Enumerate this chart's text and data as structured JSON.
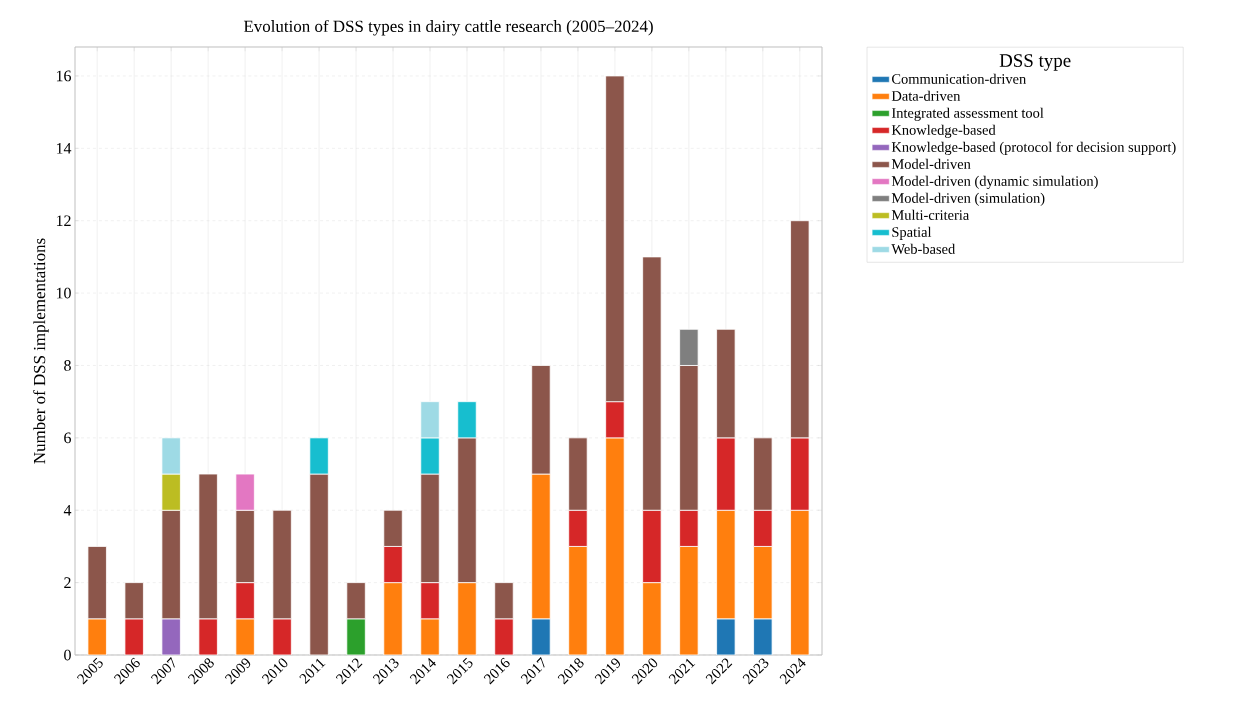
{
  "chart_data": {
    "type": "bar",
    "stacked": true,
    "title": "Evolution of DSS types in dairy cattle research (2005–2024)",
    "ylabel": "Number of DSS implementations",
    "legend_title": "DSS type",
    "categories": [
      "2005",
      "2006",
      "2007",
      "2008",
      "2009",
      "2010",
      "2011",
      "2012",
      "2013",
      "2014",
      "2015",
      "2016",
      "2017",
      "2018",
      "2019",
      "2020",
      "2021",
      "2022",
      "2023",
      "2024"
    ],
    "series": [
      {
        "name": "Communication-driven",
        "color": "#1f77b4",
        "values": [
          null,
          null,
          null,
          null,
          null,
          null,
          null,
          null,
          null,
          null,
          null,
          null,
          1,
          null,
          null,
          null,
          null,
          1,
          1,
          null
        ]
      },
      {
        "name": "Data-driven",
        "color": "#ff7f0e",
        "values": [
          1,
          null,
          null,
          null,
          1,
          null,
          null,
          null,
          2,
          1,
          2,
          null,
          4,
          3,
          6,
          2,
          3,
          3,
          2,
          4
        ]
      },
      {
        "name": "Integrated assessment tool",
        "color": "#2ca02c",
        "values": [
          null,
          null,
          null,
          null,
          null,
          null,
          null,
          1,
          null,
          null,
          null,
          null,
          null,
          null,
          null,
          null,
          null,
          null,
          null,
          null
        ]
      },
      {
        "name": "Knowledge-based",
        "color": "#d62728",
        "values": [
          null,
          1,
          null,
          1,
          1,
          1,
          null,
          null,
          1,
          1,
          null,
          1,
          null,
          1,
          1,
          2,
          1,
          2,
          1,
          2
        ]
      },
      {
        "name": "Knowledge-based (protocol for decision support)",
        "color": "#9467bd",
        "values": [
          null,
          null,
          1,
          null,
          null,
          null,
          null,
          null,
          null,
          null,
          null,
          null,
          null,
          null,
          null,
          null,
          null,
          null,
          null,
          null
        ]
      },
      {
        "name": "Model-driven",
        "color": "#8c564b",
        "values": [
          2,
          1,
          3,
          4,
          2,
          3,
          5,
          1,
          1,
          3,
          4,
          1,
          3,
          2,
          9,
          7,
          4,
          3,
          2,
          6
        ]
      },
      {
        "name": "Model-driven (dynamic simulation)",
        "color": "#e377c2",
        "values": [
          null,
          null,
          null,
          null,
          1,
          null,
          null,
          null,
          null,
          null,
          null,
          null,
          null,
          null,
          null,
          null,
          null,
          null,
          null,
          null
        ]
      },
      {
        "name": "Model-driven (simulation)",
        "color": "#7f7f7f",
        "values": [
          null,
          null,
          null,
          null,
          null,
          null,
          null,
          null,
          null,
          null,
          null,
          null,
          null,
          null,
          null,
          null,
          1,
          null,
          null,
          null
        ]
      },
      {
        "name": "Multi-criteria",
        "color": "#bcbd22",
        "values": [
          null,
          null,
          1,
          null,
          null,
          null,
          null,
          null,
          null,
          null,
          null,
          null,
          null,
          null,
          null,
          null,
          null,
          null,
          null,
          null
        ]
      },
      {
        "name": "Spatial",
        "color": "#17becf",
        "values": [
          null,
          null,
          null,
          null,
          null,
          null,
          1,
          null,
          null,
          1,
          1,
          null,
          null,
          null,
          null,
          null,
          null,
          null,
          null,
          null
        ]
      },
      {
        "name": "Web-based",
        "color": "#9edae5",
        "values": [
          null,
          null,
          1,
          null,
          null,
          null,
          null,
          null,
          null,
          1,
          null,
          null,
          null,
          null,
          null,
          null,
          null,
          null,
          null,
          null
        ]
      }
    ],
    "ylim": [
      0,
      16.8
    ],
    "yticks": [
      0,
      2,
      4,
      6,
      8,
      10,
      12,
      14,
      16
    ],
    "grid": true,
    "legend": "top right"
  }
}
